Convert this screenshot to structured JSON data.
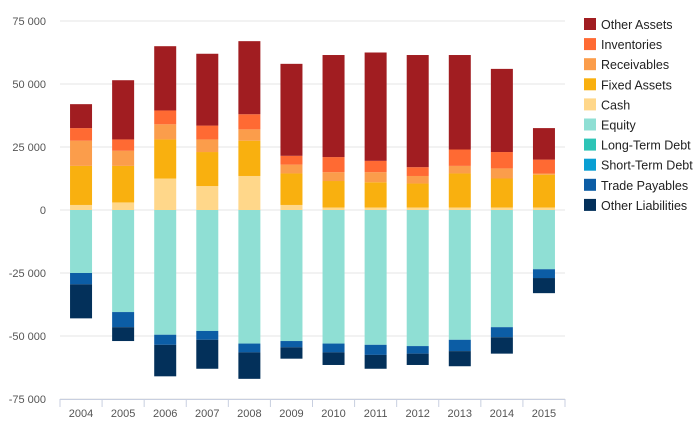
{
  "chart_data": {
    "type": "bar",
    "stacked": true,
    "title": "",
    "xlabel": "",
    "ylabel": "",
    "ylim": [
      -75000,
      75000
    ],
    "yticks": [
      75000,
      50000,
      25000,
      0,
      -25000,
      -50000,
      -75000
    ],
    "ytick_labels": [
      "75 000",
      "50 000",
      "25 000",
      "0",
      "-25 000",
      "-50 000",
      "-75 000"
    ],
    "grid": true,
    "legend_position": "right",
    "categories": [
      "2004",
      "2005",
      "2006",
      "2007",
      "2008",
      "2009",
      "2010",
      "2011",
      "2012",
      "2013",
      "2014",
      "2015"
    ],
    "series": [
      {
        "name": "Cash",
        "color": "#FFD78A",
        "values": [
          2000,
          3000,
          12500,
          9500,
          13500,
          2000,
          1000,
          1000,
          1000,
          1000,
          1000,
          1000
        ]
      },
      {
        "name": "Fixed Assets",
        "color": "#F9B00F",
        "values": [
          15500,
          14500,
          15500,
          13500,
          14000,
          12500,
          10500,
          10000,
          9500,
          13500,
          11500,
          13000
        ]
      },
      {
        "name": "Receivables",
        "color": "#FB9D4B",
        "values": [
          10000,
          6000,
          6000,
          5000,
          4500,
          3500,
          3500,
          4000,
          3000,
          3000,
          4000,
          500
        ]
      },
      {
        "name": "Inventories",
        "color": "#FF6A33",
        "values": [
          5000,
          4500,
          5500,
          5500,
          6000,
          3500,
          6000,
          4500,
          3500,
          6500,
          6500,
          5500
        ]
      },
      {
        "name": "Other Assets",
        "color": "#A11D21",
        "values": [
          9500,
          23500,
          25500,
          28500,
          29000,
          36500,
          40500,
          43000,
          44500,
          37500,
          33000,
          12500
        ]
      },
      {
        "name": "Long-Term Debt",
        "color": "#2EC4B6",
        "values": [
          0,
          0,
          0,
          0,
          0,
          0,
          0,
          0,
          0,
          0,
          0,
          0
        ]
      },
      {
        "name": "Short-Term Debt",
        "color": "#0A9FD3",
        "values": [
          0,
          0,
          0,
          0,
          0,
          0,
          0,
          0,
          0,
          0,
          0,
          0
        ]
      },
      {
        "name": "Equity",
        "color": "#8FDFD4",
        "values": [
          -25000,
          -40500,
          -49500,
          -48000,
          -53000,
          -52000,
          -53000,
          -53500,
          -54000,
          -51500,
          -46500,
          -23500
        ]
      },
      {
        "name": "Trade Payables",
        "color": "#0C5DA5",
        "values": [
          -4500,
          -6000,
          -4000,
          -3500,
          -3500,
          -2500,
          -3500,
          -4000,
          -3000,
          -4500,
          -4000,
          -3500
        ]
      },
      {
        "name": "Other Liabilities",
        "color": "#03305A",
        "values": [
          -13500,
          -5500,
          -12500,
          -11500,
          -10500,
          -4500,
          -5000,
          -5500,
          -4500,
          -6000,
          -6500,
          -6000
        ]
      }
    ],
    "legend_order": [
      "Other Assets",
      "Inventories",
      "Receivables",
      "Fixed Assets",
      "Cash",
      "Equity",
      "Long-Term Debt",
      "Short-Term Debt",
      "Trade Payables",
      "Other Liabilities"
    ]
  }
}
